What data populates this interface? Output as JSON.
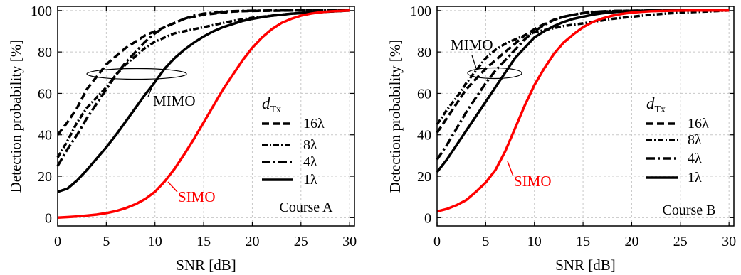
{
  "chart_data": [
    {
      "type": "line",
      "annotation_course": "Course A",
      "xlabel": "SNR [dB]",
      "ylabel": "Detection probability [%]",
      "xlim": [
        0,
        30.5
      ],
      "ylim": [
        -4,
        102
      ],
      "xticks": [
        0,
        5,
        10,
        15,
        20,
        25,
        30
      ],
      "yticks": [
        0,
        20,
        40,
        60,
        80,
        100
      ],
      "grid": true,
      "legend_title": "d",
      "legend_title_sub": "Tx",
      "legend_placement": "right-middle",
      "label_mimo": "MIMO",
      "label_simo": "SIMO",
      "colors": {
        "mimo": "#000000",
        "simo": "#ff0000",
        "grid": "#c8c8c8"
      },
      "series": [
        {
          "name": "16λ",
          "style": "dash",
          "color": "#000000",
          "x": [
            0,
            1,
            2,
            3,
            4,
            5,
            6,
            7,
            8,
            9,
            10,
            11,
            12,
            13,
            14,
            15,
            16,
            17,
            18,
            19,
            20,
            22,
            24,
            26,
            28,
            30
          ],
          "y": [
            40,
            46,
            53,
            62,
            68,
            74,
            78,
            82,
            85,
            88,
            90,
            92,
            94,
            96,
            97,
            98,
            98.5,
            99,
            99.5,
            99.7,
            99.8,
            99.9,
            100,
            100,
            100,
            100
          ]
        },
        {
          "name": "8λ",
          "style": "dashdot-fine",
          "color": "#000000",
          "x": [
            0,
            1,
            2,
            3,
            4,
            5,
            6,
            7,
            8,
            9,
            10,
            11,
            12,
            13,
            14,
            15,
            16,
            18,
            20,
            22,
            24,
            26,
            28,
            30
          ],
          "y": [
            29,
            37,
            46,
            53,
            58,
            63,
            69,
            74,
            78,
            82,
            85,
            87,
            89,
            90,
            91,
            92,
            93,
            95,
            96.5,
            97.5,
            98.5,
            99,
            99.5,
            100
          ]
        },
        {
          "name": "4λ",
          "style": "dashdot",
          "color": "#000000",
          "x": [
            0,
            1,
            2,
            3,
            4,
            5,
            6,
            7,
            8,
            9,
            10,
            11,
            12,
            13,
            14,
            15,
            16,
            17,
            18,
            20,
            22,
            24,
            26,
            28,
            30
          ],
          "y": [
            25,
            33,
            40,
            48,
            55,
            62,
            69,
            75,
            80,
            85,
            89,
            92,
            94,
            96,
            97.5,
            98.5,
            99,
            99.5,
            99.7,
            99.9,
            100,
            100,
            100,
            100,
            100
          ]
        },
        {
          "name": "1λ",
          "style": "solid",
          "color": "#000000",
          "x": [
            0,
            1,
            2,
            3,
            4,
            5,
            6,
            7,
            8,
            9,
            10,
            11,
            12,
            13,
            14,
            15,
            16,
            17,
            18,
            19,
            20,
            21,
            22,
            23,
            24,
            26,
            28,
            30
          ],
          "y": [
            12.5,
            14,
            18,
            23,
            28.5,
            34,
            40,
            46.5,
            53,
            59.5,
            65.5,
            72,
            77,
            81,
            84.5,
            87.5,
            90,
            92,
            93.5,
            95,
            96,
            96.8,
            97.5,
            98,
            98.5,
            99,
            99.5,
            100
          ]
        },
        {
          "name": "SIMO",
          "style": "solid",
          "color": "#ff0000",
          "x": [
            0,
            1,
            2,
            3,
            4,
            5,
            6,
            7,
            8,
            9,
            10,
            11,
            12,
            13,
            14,
            15,
            16,
            17,
            18,
            19,
            20,
            21,
            22,
            23,
            24,
            25,
            26,
            27,
            28,
            30
          ],
          "y": [
            0,
            0.3,
            0.6,
            1,
            1.5,
            2.2,
            3.2,
            4.6,
            6.5,
            9,
            12.5,
            17.5,
            23.5,
            30.5,
            38,
            46,
            54,
            62,
            69,
            76,
            82,
            87,
            91,
            94,
            96,
            97.5,
            98.5,
            99.2,
            99.6,
            100
          ]
        }
      ]
    },
    {
      "type": "line",
      "annotation_course": "Course B",
      "xlabel": "SNR [dB]",
      "ylabel": "Detection probability [%]",
      "xlim": [
        0,
        30.5
      ],
      "ylim": [
        -4,
        102
      ],
      "xticks": [
        0,
        5,
        10,
        15,
        20,
        25,
        30
      ],
      "yticks": [
        0,
        20,
        40,
        60,
        80,
        100
      ],
      "grid": true,
      "legend_title": "d",
      "legend_title_sub": "Tx",
      "legend_placement": "right-middle",
      "label_mimo": "MIMO",
      "label_simo": "SIMO",
      "colors": {
        "mimo": "#000000",
        "simo": "#ff0000",
        "grid": "#c8c8c8"
      },
      "series": [
        {
          "name": "16λ",
          "style": "dash",
          "color": "#000000",
          "x": [
            0,
            1,
            2,
            3,
            4,
            5,
            6,
            7,
            8,
            9,
            10,
            11,
            12,
            13,
            14,
            15,
            16,
            17,
            18,
            19,
            20,
            22,
            24,
            26,
            28,
            30
          ],
          "y": [
            41,
            48,
            55,
            62,
            67,
            72,
            76,
            80,
            84,
            88,
            91,
            93.5,
            95.5,
            97,
            98,
            98.7,
            99.2,
            99.5,
            99.7,
            99.8,
            99.9,
            100,
            100,
            100,
            100,
            100
          ]
        },
        {
          "name": "8λ",
          "style": "dashdot-fine",
          "color": "#000000",
          "x": [
            0,
            1,
            2,
            3,
            4,
            5,
            6,
            7,
            8,
            9,
            10,
            11,
            12,
            13,
            14,
            15,
            16,
            18,
            20,
            22,
            24,
            26,
            28,
            30
          ],
          "y": [
            45,
            52,
            58,
            65,
            71,
            77,
            81,
            84,
            86,
            88,
            89.5,
            90.5,
            91.5,
            92.5,
            93.2,
            93.8,
            94.5,
            96,
            97,
            98,
            98.7,
            99.2,
            99.6,
            100
          ]
        },
        {
          "name": "4λ",
          "style": "dashdot",
          "color": "#000000",
          "x": [
            0,
            1,
            2,
            3,
            4,
            5,
            6,
            7,
            8,
            9,
            10,
            11,
            12,
            13,
            14,
            15,
            16,
            17,
            18,
            20,
            22,
            24,
            26,
            28,
            30
          ],
          "y": [
            28,
            35,
            43,
            51,
            58,
            65,
            71,
            76,
            81,
            86,
            90,
            93,
            95.5,
            97,
            98,
            98.8,
            99.3,
            99.6,
            99.8,
            99.9,
            100,
            100,
            100,
            100,
            100
          ]
        },
        {
          "name": "1λ",
          "style": "solid",
          "color": "#000000",
          "x": [
            0,
            1,
            2,
            3,
            4,
            5,
            6,
            7,
            8,
            9,
            10,
            11,
            12,
            13,
            14,
            15,
            16,
            17,
            18,
            19,
            20,
            22,
            24,
            26,
            28,
            30
          ],
          "y": [
            22,
            28,
            35,
            42,
            49,
            56,
            63,
            70,
            77,
            82,
            87,
            90,
            92.5,
            94.5,
            96,
            97,
            98,
            98.7,
            99.2,
            99.5,
            99.7,
            99.9,
            100,
            100,
            100,
            100
          ]
        },
        {
          "name": "SIMO",
          "style": "solid",
          "color": "#ff0000",
          "x": [
            0,
            1,
            2,
            3,
            4,
            5,
            6,
            7,
            8,
            9,
            10,
            11,
            12,
            13,
            14,
            15,
            16,
            17,
            18,
            19,
            20,
            21,
            22,
            24,
            26,
            28,
            30
          ],
          "y": [
            3,
            4.2,
            6,
            8.5,
            12.5,
            17,
            23,
            32,
            43,
            54,
            64,
            72,
            79,
            84.5,
            88.5,
            92,
            94.5,
            96.2,
            97.5,
            98.4,
            99,
            99.4,
            99.7,
            99.9,
            100,
            100,
            100
          ]
        }
      ]
    }
  ]
}
